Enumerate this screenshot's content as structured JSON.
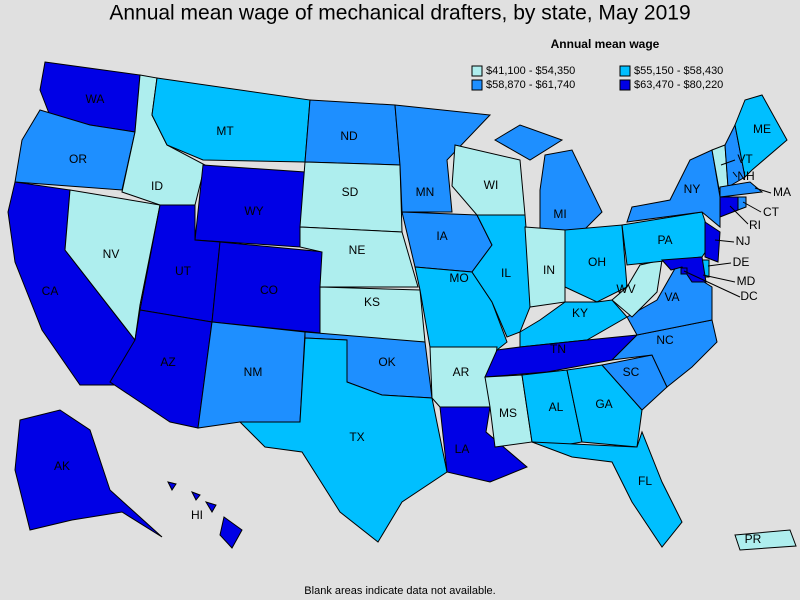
{
  "title": "Annual mean wage of mechanical drafters, by state, May 2019",
  "legend": {
    "title": "Annual mean wage",
    "items": [
      {
        "label": "$41,100 - $54,350",
        "color": "#aeeeee"
      },
      {
        "label": "$55,150 - $58,430",
        "color": "#00bfff"
      },
      {
        "label": "$58,870 - $61,740",
        "color": "#1e8fff"
      },
      {
        "label": "$63,470 - $80,220",
        "color": "#0000e6"
      }
    ]
  },
  "states": [
    {
      "label": "WA",
      "color": "#0000e6"
    },
    {
      "label": "OR",
      "color": "#1e8fff"
    },
    {
      "label": "CA",
      "color": "#0000e6"
    },
    {
      "label": "NV",
      "color": "#aeeeee"
    },
    {
      "label": "ID",
      "color": "#aeeeee"
    },
    {
      "label": "MT",
      "color": "#00bfff"
    },
    {
      "label": "WY",
      "color": "#0000e6"
    },
    {
      "label": "UT",
      "color": "#0000e6"
    },
    {
      "label": "CO",
      "color": "#0000e6"
    },
    {
      "label": "AZ",
      "color": "#0000e6"
    },
    {
      "label": "NM",
      "color": "#1e8fff"
    },
    {
      "label": "ND",
      "color": "#1e8fff"
    },
    {
      "label": "SD",
      "color": "#aeeeee"
    },
    {
      "label": "NE",
      "color": "#aeeeee"
    },
    {
      "label": "KS",
      "color": "#aeeeee"
    },
    {
      "label": "OK",
      "color": "#1e8fff"
    },
    {
      "label": "TX",
      "color": "#00bfff"
    },
    {
      "label": "MN",
      "color": "#1e8fff"
    },
    {
      "label": "IA",
      "color": "#1e8fff"
    },
    {
      "label": "MO",
      "color": "#00bfff"
    },
    {
      "label": "AR",
      "color": "#aeeeee"
    },
    {
      "label": "LA",
      "color": "#0000e6"
    },
    {
      "label": "WI",
      "color": "#aeeeee"
    },
    {
      "label": "IL",
      "color": "#00bfff"
    },
    {
      "label": "MI",
      "color": "#1e8fff"
    },
    {
      "label": "IN",
      "color": "#aeeeee"
    },
    {
      "label": "OH",
      "color": "#00bfff"
    },
    {
      "label": "KY",
      "color": "#00bfff"
    },
    {
      "label": "TN",
      "color": "#0000e6"
    },
    {
      "label": "MS",
      "color": "#aeeeee"
    },
    {
      "label": "AL",
      "color": "#00bfff"
    },
    {
      "label": "GA",
      "color": "#00bfff"
    },
    {
      "label": "FL",
      "color": "#00bfff"
    },
    {
      "label": "SC",
      "color": "#1e8fff"
    },
    {
      "label": "NC",
      "color": "#1e8fff"
    },
    {
      "label": "VA",
      "color": "#1e8fff"
    },
    {
      "label": "WV",
      "color": "#aeeeee"
    },
    {
      "label": "PA",
      "color": "#00bfff"
    },
    {
      "label": "NY",
      "color": "#1e8fff"
    },
    {
      "label": "VT",
      "color": "#aeeeee"
    },
    {
      "label": "NH",
      "color": "#1e8fff"
    },
    {
      "label": "ME",
      "color": "#00bfff"
    },
    {
      "label": "MA",
      "color": "#1e8fff"
    },
    {
      "label": "CT",
      "color": "#0000e6"
    },
    {
      "label": "RI",
      "color": "#1e8fff"
    },
    {
      "label": "NJ",
      "color": "#0000e6"
    },
    {
      "label": "DE",
      "color": "#00bfff"
    },
    {
      "label": "MD",
      "color": "#0000e6"
    },
    {
      "label": "DC",
      "color": "#0000e6"
    },
    {
      "label": "AK",
      "color": "#0000e6"
    },
    {
      "label": "HI",
      "color": "#0000e6"
    },
    {
      "label": "PR",
      "color": "#aeeeee"
    }
  ],
  "footnote": "Blank areas indicate data not available."
}
